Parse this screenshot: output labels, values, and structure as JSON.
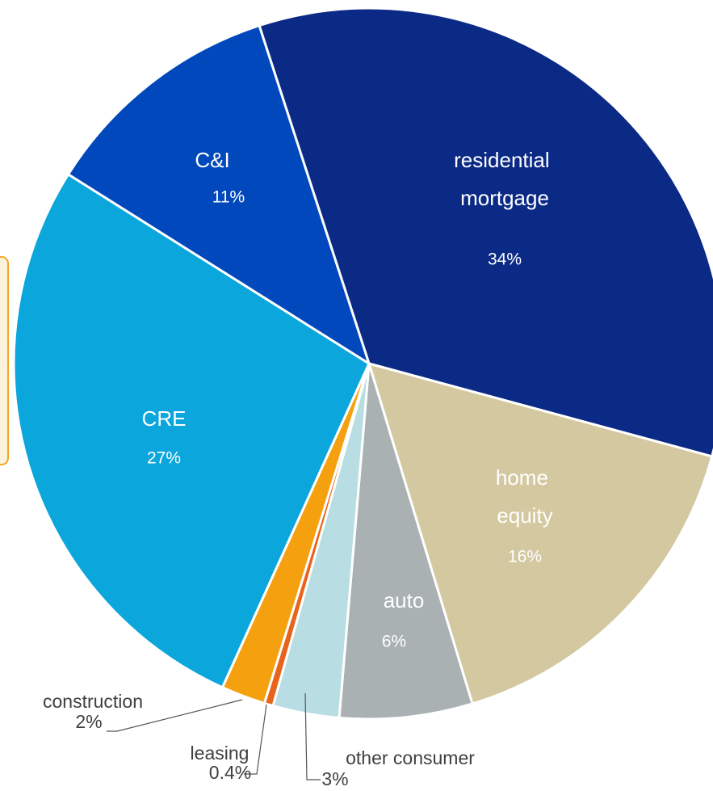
{
  "chart_data": {
    "type": "pie",
    "categories": [
      "residential mortgage",
      "home equity",
      "auto",
      "other consumer",
      "leasing",
      "construction",
      "CRE",
      "C&I"
    ],
    "values": [
      34,
      16,
      6,
      3,
      0.4,
      2,
      27,
      11
    ],
    "value_labels": [
      "34%",
      "16%",
      "6%",
      "3%",
      "0.4%",
      "2%",
      "27%",
      "11%"
    ],
    "colors": [
      "#0b2a86",
      "#d3c8a0",
      "#a9b1b3",
      "#b8dde3",
      "#e8631c",
      "#f5a10f",
      "#0aa6dc",
      "#0048bb"
    ]
  }
}
